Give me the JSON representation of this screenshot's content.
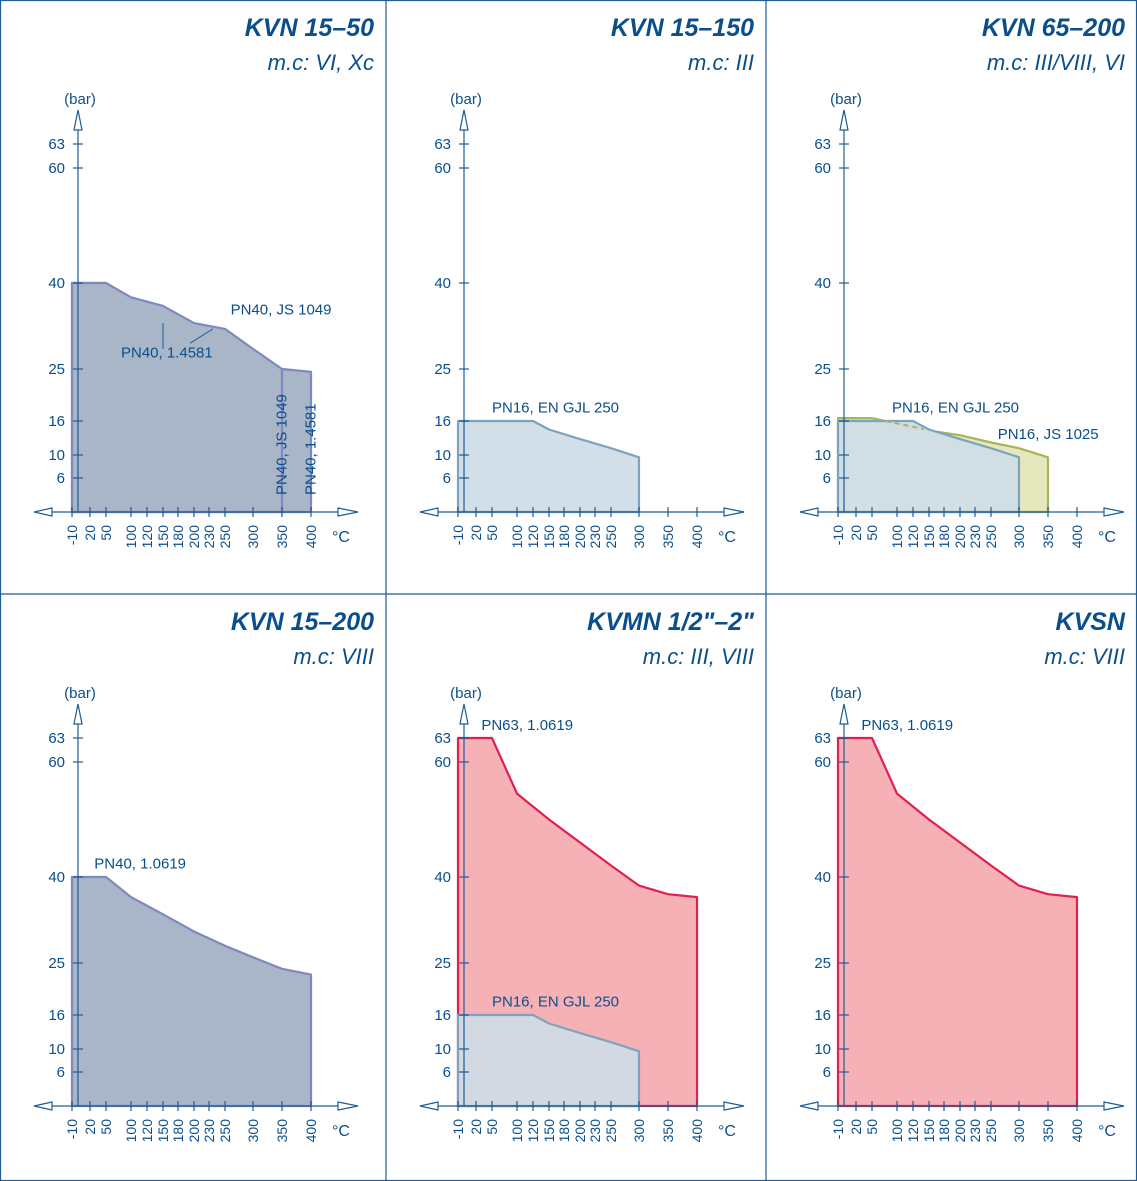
{
  "colors": {
    "axis": "#1d5c96",
    "line": "#0a4f8c",
    "grid_border": "#1d5c96",
    "pn40_fill": "#a9b6c8",
    "pn40_stroke": "#7f88c0",
    "pn16_fill": "#cfdce6",
    "pn16_stroke": "#7ea3bd",
    "js_fill": "#e3e6b6",
    "js_stroke": "#a7b55a",
    "pn63_fill": "#f5aab0",
    "pn63_stroke": "#e0204f"
  },
  "chart_data": [
    {
      "type": "area",
      "title": "KVN 15–50",
      "subtitle": "m.c: VI, Xc",
      "ylabel": "(bar)",
      "xlabel": "°C",
      "yticks": [
        6,
        10,
        16,
        25,
        40,
        60,
        63
      ],
      "xticks": [
        -10,
        20,
        50,
        100,
        120,
        150,
        180,
        200,
        230,
        250,
        300,
        350,
        400
      ],
      "series": [
        {
          "name": "PN40, 1.4581",
          "style": "pn40",
          "x": [
            -10,
            50,
            100,
            150,
            200,
            250,
            300,
            350,
            400,
            400
          ],
          "y": [
            40,
            40,
            35.5,
            33,
            30.5,
            28.5,
            26.5,
            25,
            24.5,
            0
          ]
        },
        {
          "name": "PN40, JS 1049",
          "style": "pn40",
          "x": [
            -10,
            50,
            100,
            150,
            200,
            250,
            300,
            350,
            350
          ],
          "y": [
            40,
            40,
            37.5,
            36,
            33,
            32,
            28.5,
            25,
            0
          ]
        }
      ],
      "labels": [
        {
          "text": "PN40, JS 1049",
          "x": 260,
          "y": 34.5,
          "leader": [
            235,
            32,
            195,
            29.5
          ]
        },
        {
          "text": "PN40, 1.4581",
          "x": 80,
          "y": 27,
          "leader": [
            150,
            28.5,
            150,
            33
          ]
        },
        {
          "text": "PN40, JS 1049",
          "x": 358,
          "y": 3,
          "rotate": true
        },
        {
          "text": "PN40, 1.4581",
          "x": 408,
          "y": 3,
          "rotate": true
        }
      ]
    },
    {
      "type": "area",
      "title": "KVN 15–150",
      "subtitle": "m.c: III",
      "ylabel": "(bar)",
      "xlabel": "°C",
      "yticks": [
        6,
        10,
        16,
        25,
        40,
        60,
        63
      ],
      "xticks": [
        -10,
        20,
        50,
        100,
        120,
        150,
        180,
        200,
        230,
        250,
        300,
        350,
        400
      ],
      "series": [
        {
          "name": "PN16, EN GJL 250",
          "style": "pn16",
          "x": [
            -10,
            120,
            150,
            200,
            250,
            300,
            300
          ],
          "y": [
            16,
            16,
            14.5,
            12.8,
            11.2,
            9.6,
            0
          ]
        }
      ],
      "labels": [
        {
          "text": "PN16, EN GJL 250",
          "x": 50,
          "y": 17.5
        }
      ]
    },
    {
      "type": "area",
      "title": "KVN 65–200",
      "subtitle": "m.c: III/VIII, VI",
      "ylabel": "(bar)",
      "xlabel": "°C",
      "yticks": [
        6,
        10,
        16,
        25,
        40,
        60,
        63
      ],
      "xticks": [
        -10,
        20,
        50,
        100,
        120,
        150,
        180,
        200,
        230,
        250,
        300,
        350,
        400
      ],
      "series": [
        {
          "name": "PN16, JS 1025",
          "style": "js",
          "x": [
            -10,
            50,
            100,
            150,
            200,
            250,
            300,
            350,
            350
          ],
          "y": [
            16.5,
            16.5,
            15.5,
            14.3,
            13.5,
            12.2,
            11.2,
            9.6,
            0
          ]
        },
        {
          "name": "PN16, EN GJL 250",
          "style": "pn16",
          "x": [
            -10,
            120,
            150,
            200,
            250,
            300,
            300
          ],
          "y": [
            16,
            16,
            14.5,
            12.8,
            11.2,
            9.6,
            0
          ]
        }
      ],
      "labels": [
        {
          "text": "PN16, EN GJL 250",
          "x": 90,
          "y": 17.5
        },
        {
          "text": "PN16, JS 1025",
          "x": 262,
          "y": 12.8
        }
      ]
    },
    {
      "type": "area",
      "title": "KVN 15–200",
      "subtitle": "m.c: VIII",
      "ylabel": "(bar)",
      "xlabel": "°C",
      "yticks": [
        6,
        10,
        16,
        25,
        40,
        60,
        63
      ],
      "xticks": [
        -10,
        20,
        50,
        100,
        120,
        150,
        180,
        200,
        230,
        250,
        300,
        350,
        400
      ],
      "series": [
        {
          "name": "PN40, 1.0619",
          "style": "pn40",
          "x": [
            -10,
            50,
            100,
            150,
            200,
            250,
            300,
            350,
            400,
            400
          ],
          "y": [
            40,
            40,
            36.5,
            33.5,
            30.5,
            28,
            26,
            24,
            23,
            0
          ]
        }
      ],
      "labels": [
        {
          "text": "PN40, 1.0619",
          "x": 28,
          "y": 41.5
        }
      ]
    },
    {
      "type": "area",
      "title": "KVMN 1/2\"–2\"",
      "subtitle": "m.c: III, VIII",
      "ylabel": "(bar)",
      "xlabel": "°C",
      "yticks": [
        6,
        10,
        16,
        25,
        40,
        60,
        63
      ],
      "xticks": [
        -10,
        20,
        50,
        100,
        120,
        150,
        180,
        200,
        230,
        250,
        300,
        350,
        400
      ],
      "series": [
        {
          "name": "PN63, 1.0619",
          "style": "pn63",
          "x": [
            -10,
            50,
            100,
            150,
            200,
            250,
            300,
            350,
            400,
            400
          ],
          "y": [
            63,
            63,
            54.5,
            50,
            46,
            42,
            38.5,
            37,
            36.5,
            0
          ]
        },
        {
          "name": "PN16, EN GJL 250",
          "style": "pn16",
          "x": [
            -10,
            120,
            150,
            200,
            250,
            300,
            300
          ],
          "y": [
            16,
            16,
            14.5,
            12.8,
            11.2,
            9.6,
            0
          ]
        }
      ],
      "labels": [
        {
          "text": "PN63, 1.0619",
          "x": 30,
          "y": 64
        },
        {
          "text": "PN16, EN GJL 250",
          "x": 50,
          "y": 17.5
        }
      ]
    },
    {
      "type": "area",
      "title": "KVSN",
      "subtitle": "m.c: VIII",
      "ylabel": "(bar)",
      "xlabel": "°C",
      "yticks": [
        6,
        10,
        16,
        25,
        40,
        60,
        63
      ],
      "xticks": [
        -10,
        20,
        50,
        100,
        120,
        150,
        180,
        200,
        230,
        250,
        300,
        350,
        400
      ],
      "series": [
        {
          "name": "PN63, 1.0619",
          "style": "pn63",
          "x": [
            -10,
            50,
            100,
            150,
            200,
            250,
            300,
            350,
            400,
            400
          ],
          "y": [
            63,
            63,
            54.5,
            50,
            46,
            42,
            38.5,
            37,
            36.5,
            0
          ]
        }
      ],
      "labels": [
        {
          "text": "PN63, 1.0619",
          "x": 30,
          "y": 64
        }
      ]
    }
  ]
}
